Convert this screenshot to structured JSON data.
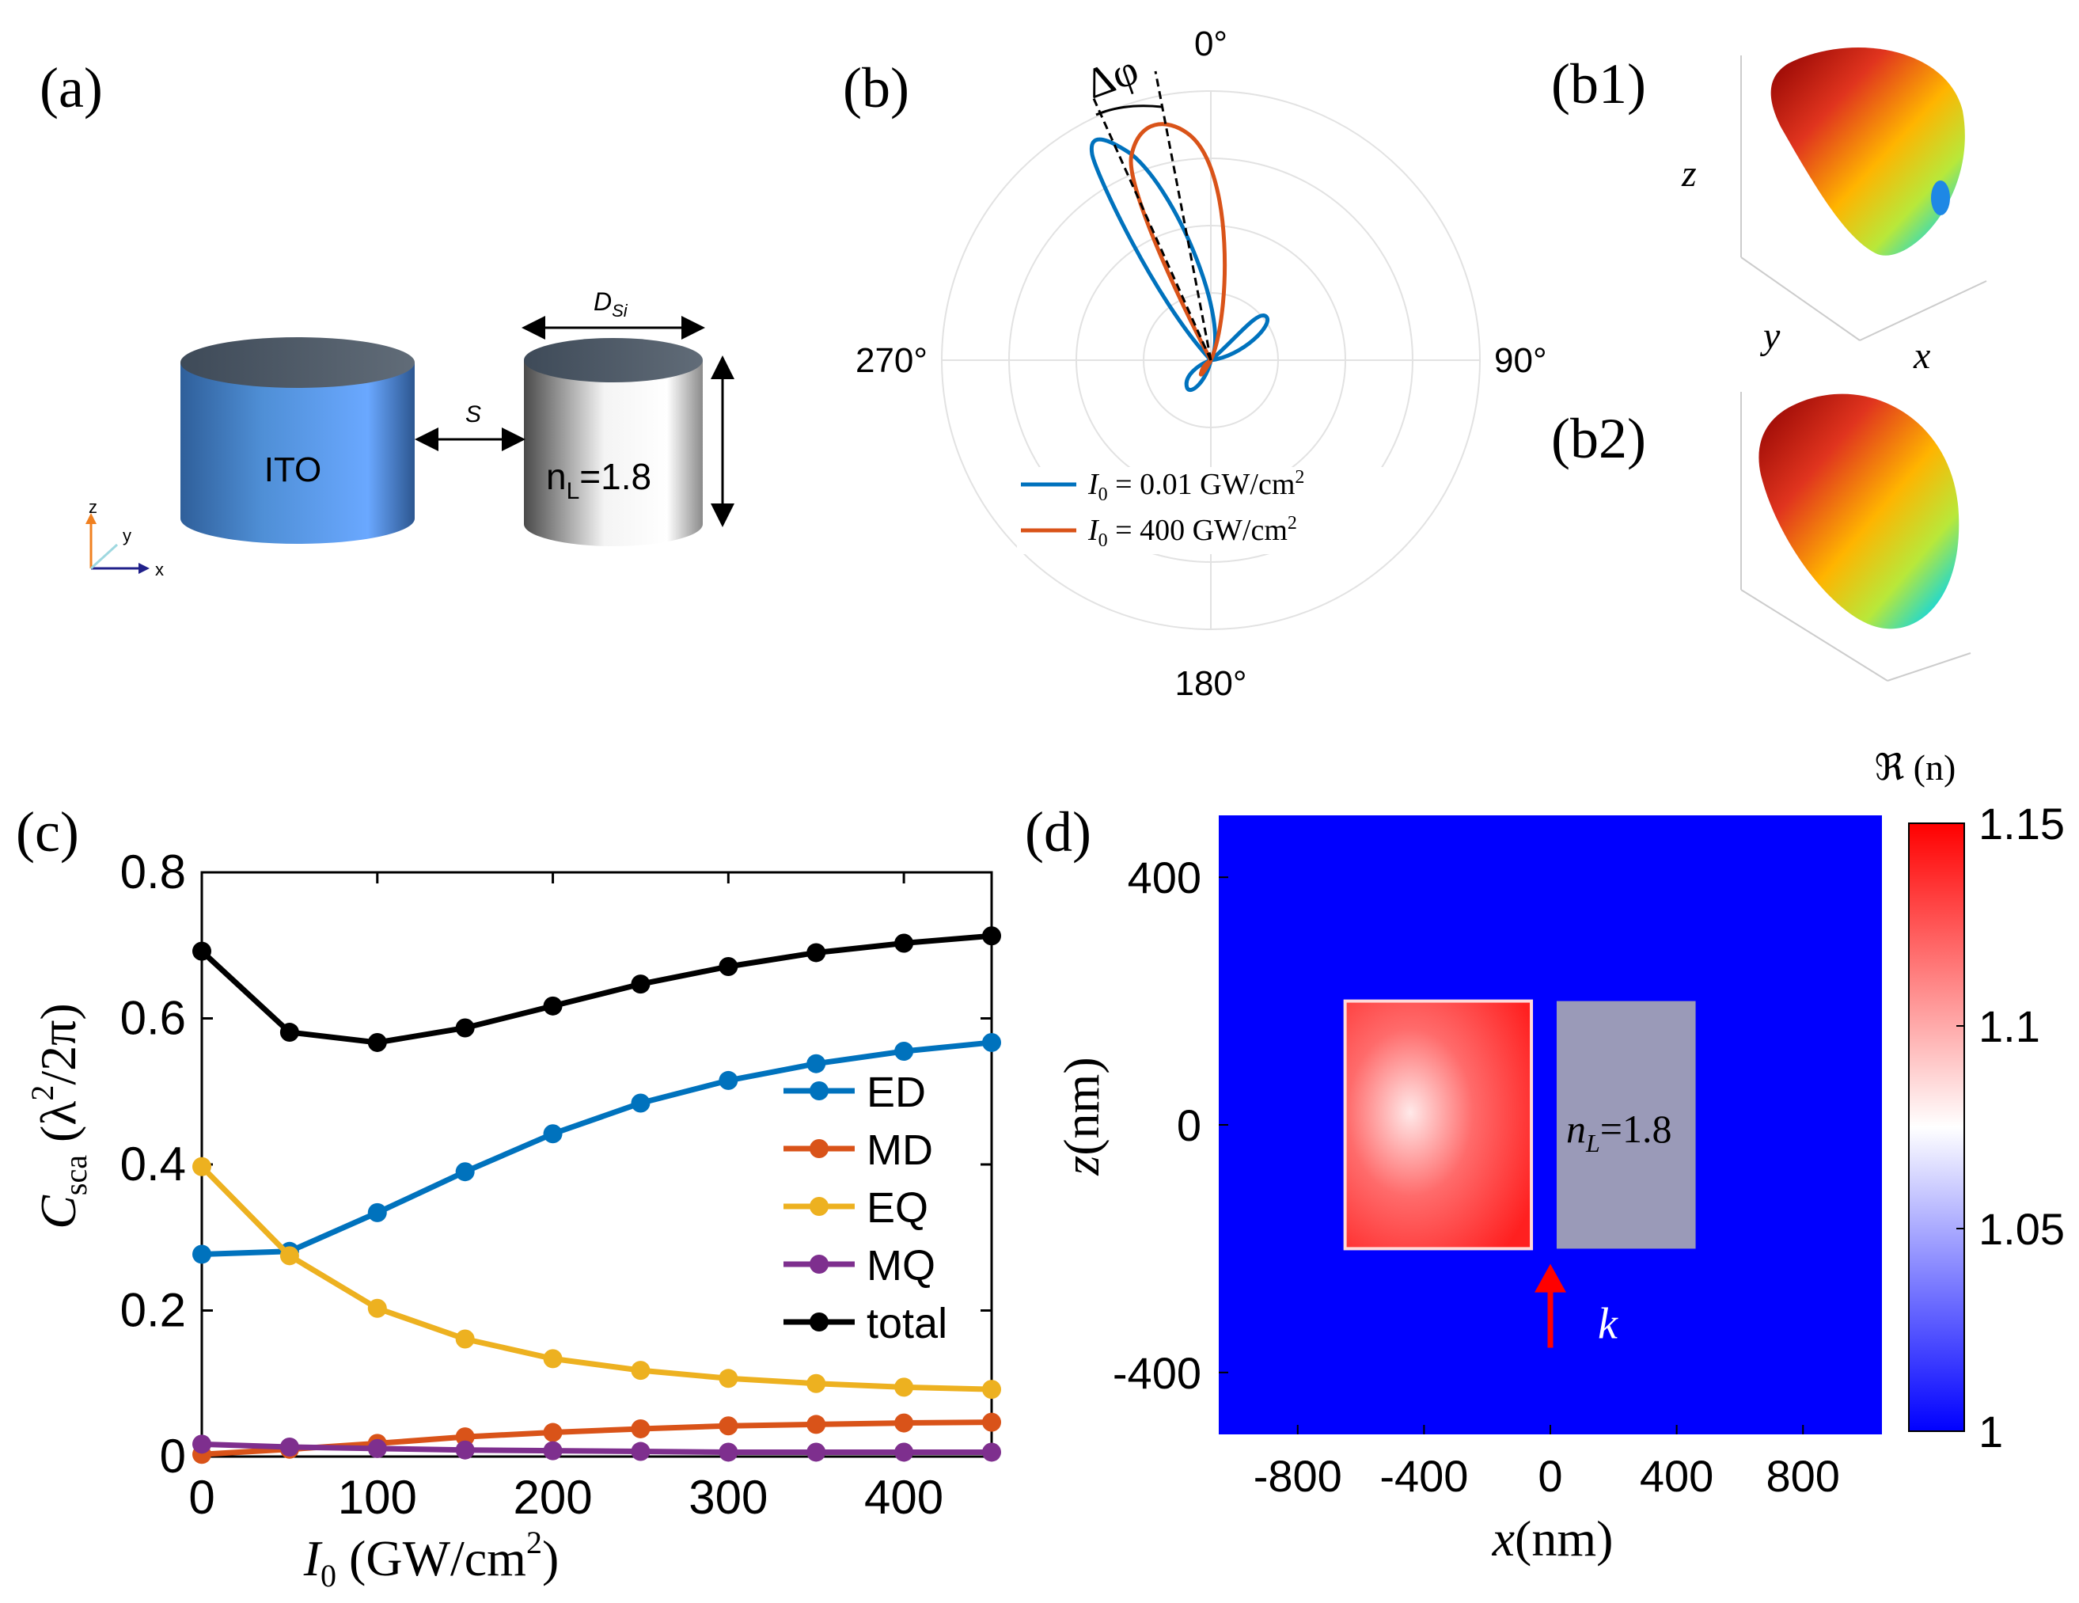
{
  "colors": {
    "blue": "#0072bd",
    "orange": "#d95319",
    "yellow": "#edb120",
    "purple": "#7e2f8e",
    "black": "#000000",
    "map_bg": "#0000ff",
    "map_box": "#ff2b2b",
    "map_low": "#9a9ab8",
    "arrow": "#ff0000"
  },
  "panel_a": {
    "label": "(a)",
    "cyl1_label": "ITO",
    "cyl2_label_main": "n",
    "cyl2_label_sub": "L",
    "cyl2_label_value": "=1.8",
    "gap_label": "S",
    "width_label_main": "D",
    "width_label_sub": "Si",
    "axis_z": "z",
    "axis_y": "y",
    "axis_x": "x"
  },
  "panel_b": {
    "label": "(b)",
    "delta_phi": "Δφ",
    "angles": {
      "top": "0°",
      "right": "90°",
      "bottom": "180°",
      "left": "270°"
    },
    "legend": [
      {
        "pre": "I",
        "sub": "0",
        "text": " = 0.01 GW/cm",
        "sup": "2"
      },
      {
        "pre": "I",
        "sub": "0",
        "text": " = 400 GW/cm",
        "sup": "2"
      }
    ]
  },
  "panel_b1": {
    "label": "(b1)",
    "axis_z": "z",
    "axis_y": "y",
    "axis_x": "x"
  },
  "panel_b2": {
    "label": "(b2)"
  },
  "panel_c": {
    "label": "(c)"
  },
  "panel_d": {
    "label": "(d)",
    "box_label_main": "n",
    "box_label_sub": "L",
    "box_label_value": "=1.8",
    "arrow_label": "k",
    "colorbar_title": "ℜ (n)",
    "colorbar_ticks": [
      "1.15",
      "1.1",
      "1.05",
      "1"
    ]
  },
  "chart_data": [
    {
      "type": "line",
      "panel": "(c)",
      "x": [
        0,
        50,
        100,
        150,
        200,
        250,
        300,
        350,
        400,
        450
      ],
      "xlabel": "I0 (GW/cm2)",
      "ylabel": "Csca (λ2/2π)",
      "xlim": [
        0,
        450
      ],
      "ylim": [
        0,
        0.8
      ],
      "xticks": [
        "0",
        "100",
        "200",
        "300",
        "400"
      ],
      "yticks": [
        "0",
        "0.2",
        "0.4",
        "0.6",
        "0.8"
      ],
      "legend_position": "middle-right",
      "series": [
        {
          "name": "ED",
          "values": [
            0.277,
            0.281,
            0.334,
            0.39,
            0.442,
            0.484,
            0.515,
            0.538,
            0.555,
            0.567
          ]
        },
        {
          "name": "MD",
          "values": [
            0.003,
            0.01,
            0.018,
            0.027,
            0.033,
            0.038,
            0.042,
            0.044,
            0.046,
            0.047
          ]
        },
        {
          "name": "EQ",
          "values": [
            0.397,
            0.275,
            0.203,
            0.161,
            0.134,
            0.118,
            0.107,
            0.1,
            0.095,
            0.092
          ]
        },
        {
          "name": "MQ",
          "values": [
            0.017,
            0.013,
            0.011,
            0.009,
            0.008,
            0.007,
            0.006,
            0.006,
            0.006,
            0.006
          ]
        },
        {
          "name": "total",
          "values": [
            0.692,
            0.581,
            0.567,
            0.587,
            0.617,
            0.647,
            0.671,
            0.69,
            0.703,
            0.713
          ]
        }
      ]
    },
    {
      "type": "heatmap",
      "panel": "(d)",
      "xlabel": "x(nm)",
      "ylabel": "z(nm)",
      "xlim": [
        -1050,
        1050
      ],
      "ylim": [
        -500,
        500
      ],
      "xticks": [
        -800,
        -400,
        0,
        400,
        800
      ],
      "yticks": [
        400,
        0,
        -400
      ],
      "colorbar_range": [
        1,
        1.15
      ],
      "regions": [
        {
          "name": "ITO",
          "x": [
            -650,
            -60
          ],
          "z": [
            -200,
            200
          ]
        },
        {
          "name": "nL",
          "x": [
            20,
            460
          ],
          "z": [
            -200,
            200
          ]
        }
      ],
      "arrow_x": 0,
      "arrow_z": [
        -360,
        -240
      ]
    },
    {
      "type": "polar",
      "panel": "(b)",
      "series": [
        {
          "name": "I0 = 0.01 GW/cm2",
          "main_lobe_deg": -30
        },
        {
          "name": "I0 = 400 GW/cm2",
          "main_lobe_deg": -16
        }
      ]
    }
  ]
}
